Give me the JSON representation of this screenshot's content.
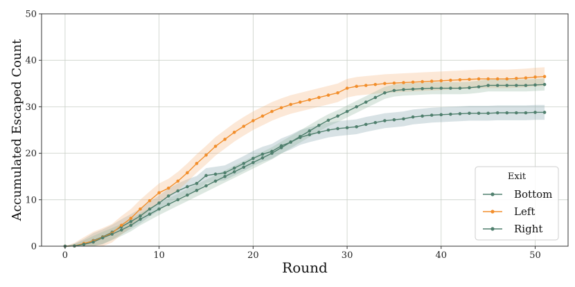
{
  "chart_data": {
    "type": "line",
    "xlabel": "Round",
    "ylabel": "Accumulated Escaped Count",
    "xlim": [
      -2.5,
      53.5
    ],
    "ylim": [
      0,
      50
    ],
    "xticks": [
      0,
      10,
      20,
      30,
      40,
      50
    ],
    "yticks": [
      0,
      10,
      20,
      30,
      40,
      50
    ],
    "grid": true,
    "legend": {
      "title": "Exit",
      "placement": "lower-right"
    },
    "x": [
      0,
      1,
      2,
      3,
      4,
      5,
      6,
      7,
      8,
      9,
      10,
      11,
      12,
      13,
      14,
      15,
      16,
      17,
      18,
      19,
      20,
      21,
      22,
      23,
      24,
      25,
      26,
      27,
      28,
      29,
      30,
      31,
      32,
      33,
      34,
      35,
      36,
      37,
      38,
      39,
      40,
      41,
      42,
      43,
      44,
      45,
      46,
      47,
      48,
      49,
      50,
      51
    ],
    "series": [
      {
        "name": "Bottom",
        "color": "#4f7f6d",
        "values": [
          0,
          0.05,
          0.5,
          1.2,
          2,
          3,
          4.2,
          5.3,
          6.5,
          8,
          9.3,
          10.8,
          11.9,
          12.8,
          13.5,
          15.2,
          15.5,
          15.8,
          16.8,
          17.8,
          18.9,
          19.8,
          20.4,
          21.6,
          22.4,
          23.4,
          24,
          24.5,
          25,
          25.3,
          25.5,
          25.7,
          26.2,
          26.6,
          27,
          27.2,
          27.4,
          27.8,
          28,
          28.2,
          28.3,
          28.4,
          28.5,
          28.6,
          28.6,
          28.6,
          28.7,
          28.7,
          28.7,
          28.7,
          28.8,
          28.8
        ],
        "band": 1.6
      },
      {
        "name": "Left",
        "color": "#f28e2b",
        "values": [
          0,
          0.05,
          0.6,
          1.1,
          1.9,
          2.8,
          4.5,
          6,
          8,
          9.8,
          11.5,
          12.5,
          14,
          15.8,
          17.8,
          19.6,
          21.5,
          23,
          24.5,
          25.8,
          27,
          28,
          29,
          29.8,
          30.5,
          31,
          31.5,
          32,
          32.5,
          33,
          34,
          34.4,
          34.6,
          34.8,
          35,
          35.1,
          35.2,
          35.3,
          35.4,
          35.5,
          35.6,
          35.7,
          35.8,
          35.9,
          36,
          36,
          36,
          36,
          36.1,
          36.2,
          36.4,
          36.5
        ],
        "band": 2.0
      },
      {
        "name": "Right",
        "color": "#4f7f6d",
        "values": [
          0,
          0.05,
          0.4,
          0.9,
          1.8,
          2.6,
          3.5,
          4.5,
          5.8,
          6.9,
          8,
          9,
          10,
          11,
          12,
          13,
          14,
          15,
          16,
          17,
          18,
          19,
          20,
          21.2,
          22.4,
          23.6,
          24.8,
          26,
          27.1,
          28,
          29,
          30,
          31,
          32,
          33,
          33.5,
          33.7,
          33.8,
          33.9,
          34,
          34,
          34,
          34,
          34.1,
          34.3,
          34.6,
          34.6,
          34.6,
          34.6,
          34.6,
          34.7,
          34.8
        ],
        "band": 1.3
      }
    ]
  }
}
